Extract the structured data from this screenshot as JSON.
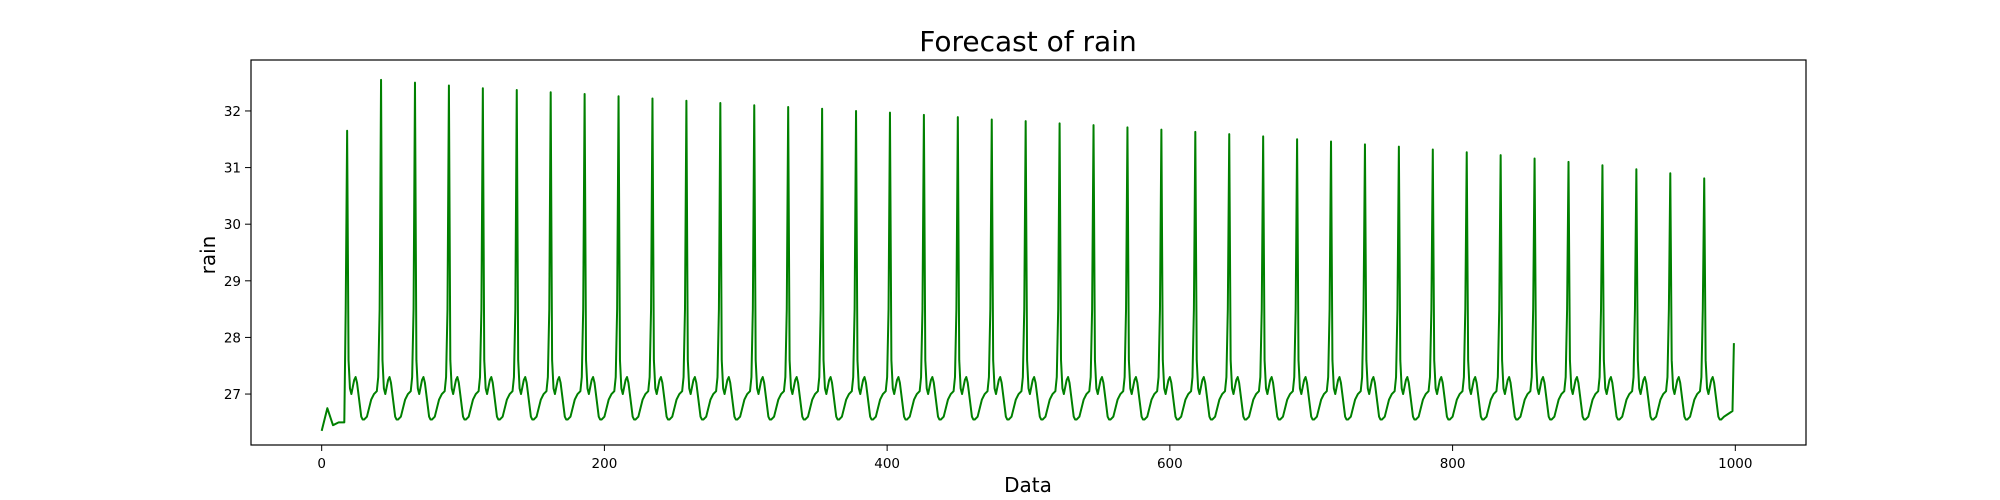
{
  "chart_data": {
    "type": "line",
    "title": "Forecast of rain",
    "xlabel": "Data",
    "ylabel": "rain",
    "xlim": [
      -50,
      1050
    ],
    "ylim": [
      26.1,
      32.9
    ],
    "xticks": [
      0,
      200,
      400,
      600,
      800,
      1000
    ],
    "yticks": [
      27,
      28,
      29,
      30,
      31,
      32
    ],
    "grid": false,
    "line_color": "#008000",
    "series": [
      {
        "x_start": 0,
        "x_end": 999,
        "num_points": 1000,
        "period": 24,
        "first_peak_x": 18,
        "initial_values": [
          26.35,
          26.75,
          26.45,
          26.5
        ],
        "cycle_shape": {
          "peak_offsets": [
            0,
            1,
            2,
            3,
            4,
            5
          ],
          "after_peak_values": [
            27.6,
            27.1,
            27.0,
            27.15,
            27.25,
            27.3
          ],
          "secondary_bump": 27.3,
          "trough": 26.55,
          "pre_peak_rise": 27.0
        },
        "peaks": [
          {
            "x": 18,
            "y": 31.65
          },
          {
            "x": 42,
            "y": 32.55
          },
          {
            "x": 66,
            "y": 32.5
          },
          {
            "x": 90,
            "y": 32.45
          },
          {
            "x": 114,
            "y": 32.4
          },
          {
            "x": 138,
            "y": 32.37
          },
          {
            "x": 162,
            "y": 32.33
          },
          {
            "x": 186,
            "y": 32.3
          },
          {
            "x": 210,
            "y": 32.26
          },
          {
            "x": 234,
            "y": 32.22
          },
          {
            "x": 258,
            "y": 32.18
          },
          {
            "x": 282,
            "y": 32.14
          },
          {
            "x": 306,
            "y": 32.1
          },
          {
            "x": 330,
            "y": 32.07
          },
          {
            "x": 354,
            "y": 32.04
          },
          {
            "x": 378,
            "y": 32.0
          },
          {
            "x": 402,
            "y": 31.97
          },
          {
            "x": 426,
            "y": 31.93
          },
          {
            "x": 450,
            "y": 31.89
          },
          {
            "x": 474,
            "y": 31.85
          },
          {
            "x": 498,
            "y": 31.82
          },
          {
            "x": 522,
            "y": 31.78
          },
          {
            "x": 546,
            "y": 31.75
          },
          {
            "x": 570,
            "y": 31.71
          },
          {
            "x": 594,
            "y": 31.67
          },
          {
            "x": 618,
            "y": 31.63
          },
          {
            "x": 642,
            "y": 31.59
          },
          {
            "x": 666,
            "y": 31.55
          },
          {
            "x": 690,
            "y": 31.5
          },
          {
            "x": 714,
            "y": 31.46
          },
          {
            "x": 738,
            "y": 31.41
          },
          {
            "x": 762,
            "y": 31.37
          },
          {
            "x": 786,
            "y": 31.32
          },
          {
            "x": 810,
            "y": 31.27
          },
          {
            "x": 834,
            "y": 31.22
          },
          {
            "x": 858,
            "y": 31.16
          },
          {
            "x": 882,
            "y": 31.1
          },
          {
            "x": 906,
            "y": 31.04
          },
          {
            "x": 930,
            "y": 30.97
          },
          {
            "x": 954,
            "y": 30.9
          },
          {
            "x": 978,
            "y": 30.81
          }
        ],
        "end_value": {
          "x": 999,
          "y": 27.9
        }
      }
    ]
  }
}
